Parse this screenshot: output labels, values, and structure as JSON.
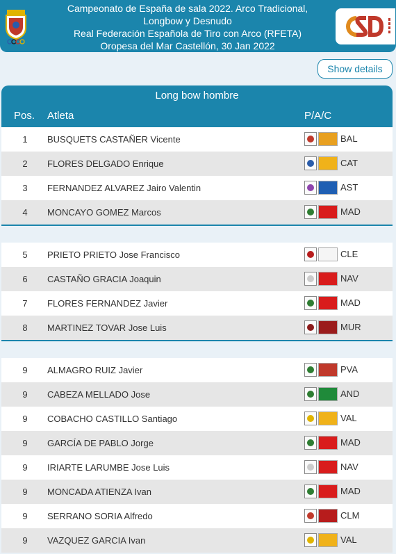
{
  "header": {
    "title_lines": [
      "Campeonato de España de sala 2022. Arco Tradicional,",
      "Longbow y Desnudo",
      "Real Federación Española de Tiro con Arco (RFETA)",
      "Oropesa del Mar Castellón, 30 Jan 2022"
    ]
  },
  "show_details_label": "Show details",
  "table": {
    "category": "Long bow hombre",
    "columns": {
      "pos": "Pos.",
      "athlete": "Atleta",
      "pac": "P/A/C"
    },
    "groups": [
      [
        {
          "pos": "1",
          "name": "BUSQUETS CASTAÑER Vicente",
          "code": "BAL",
          "flag_color": "#e8a020",
          "emblem": "#c0392b"
        },
        {
          "pos": "2",
          "name": "FLORES DELGADO Enrique",
          "code": "CAT",
          "flag_color": "#f0b21a",
          "emblem": "#2a5caa"
        },
        {
          "pos": "3",
          "name": "FERNANDEZ ALVAREZ Jairo Valentin",
          "code": "AST",
          "flag_color": "#1f5fb3",
          "emblem": "#8e44ad"
        },
        {
          "pos": "4",
          "name": "MONCAYO GOMEZ Marcos",
          "code": "MAD",
          "flag_color": "#d91c1c",
          "emblem": "#2e7d32"
        }
      ],
      [
        {
          "pos": "5",
          "name": "PRIETO PRIETO Jose Francisco",
          "code": "CLE",
          "flag_color": "#f5f5f5",
          "emblem": "#b71c1c"
        },
        {
          "pos": "6",
          "name": "CASTAÑO GRACIA Joaquin",
          "code": "NAV",
          "flag_color": "#d91c1c",
          "emblem": "#cccccc"
        },
        {
          "pos": "7",
          "name": "FLORES FERNANDEZ Javier",
          "code": "MAD",
          "flag_color": "#d91c1c",
          "emblem": "#2e7d32"
        },
        {
          "pos": "8",
          "name": "MARTINEZ TOVAR Jose Luis",
          "code": "MUR",
          "flag_color": "#9b1c1c",
          "emblem": "#8b1a1a"
        }
      ],
      [
        {
          "pos": "9",
          "name": "ALMAGRO RUIZ Javier",
          "code": "PVA",
          "flag_color": "#c0392b",
          "emblem": "#2e7d32"
        },
        {
          "pos": "9",
          "name": "CABEZA MELLADO Jose",
          "code": "AND",
          "flag_color": "#1f8a3a",
          "emblem": "#2e7d32"
        },
        {
          "pos": "9",
          "name": "COBACHO CASTILLO Santiago",
          "code": "VAL",
          "flag_color": "#f0b21a",
          "emblem": "#e0b400"
        },
        {
          "pos": "9",
          "name": "GARCÍA DE PABLO Jorge",
          "code": "MAD",
          "flag_color": "#d91c1c",
          "emblem": "#2e7d32"
        },
        {
          "pos": "9",
          "name": "IRIARTE LARUMBE Jose Luis",
          "code": "NAV",
          "flag_color": "#d91c1c",
          "emblem": "#cccccc"
        },
        {
          "pos": "9",
          "name": "MONCADA ATIENZA Ivan",
          "code": "MAD",
          "flag_color": "#d91c1c",
          "emblem": "#2e7d32"
        },
        {
          "pos": "9",
          "name": "SERRANO SORIA Alfredo",
          "code": "CLM",
          "flag_color": "#b71c1c",
          "emblem": "#c0392b"
        },
        {
          "pos": "9",
          "name": "VAZQUEZ GARCIA Ivan",
          "code": "VAL",
          "flag_color": "#f0b21a",
          "emblem": "#e0b400"
        }
      ]
    ]
  },
  "icons": {
    "left_logo": "federation-crest-icon",
    "right_logo": "csd-logo-icon",
    "flag": "region-flag-icon"
  },
  "colors": {
    "accent": "#1b85ac",
    "row_even": "#e6e6e6",
    "row_odd": "#ffffff"
  }
}
